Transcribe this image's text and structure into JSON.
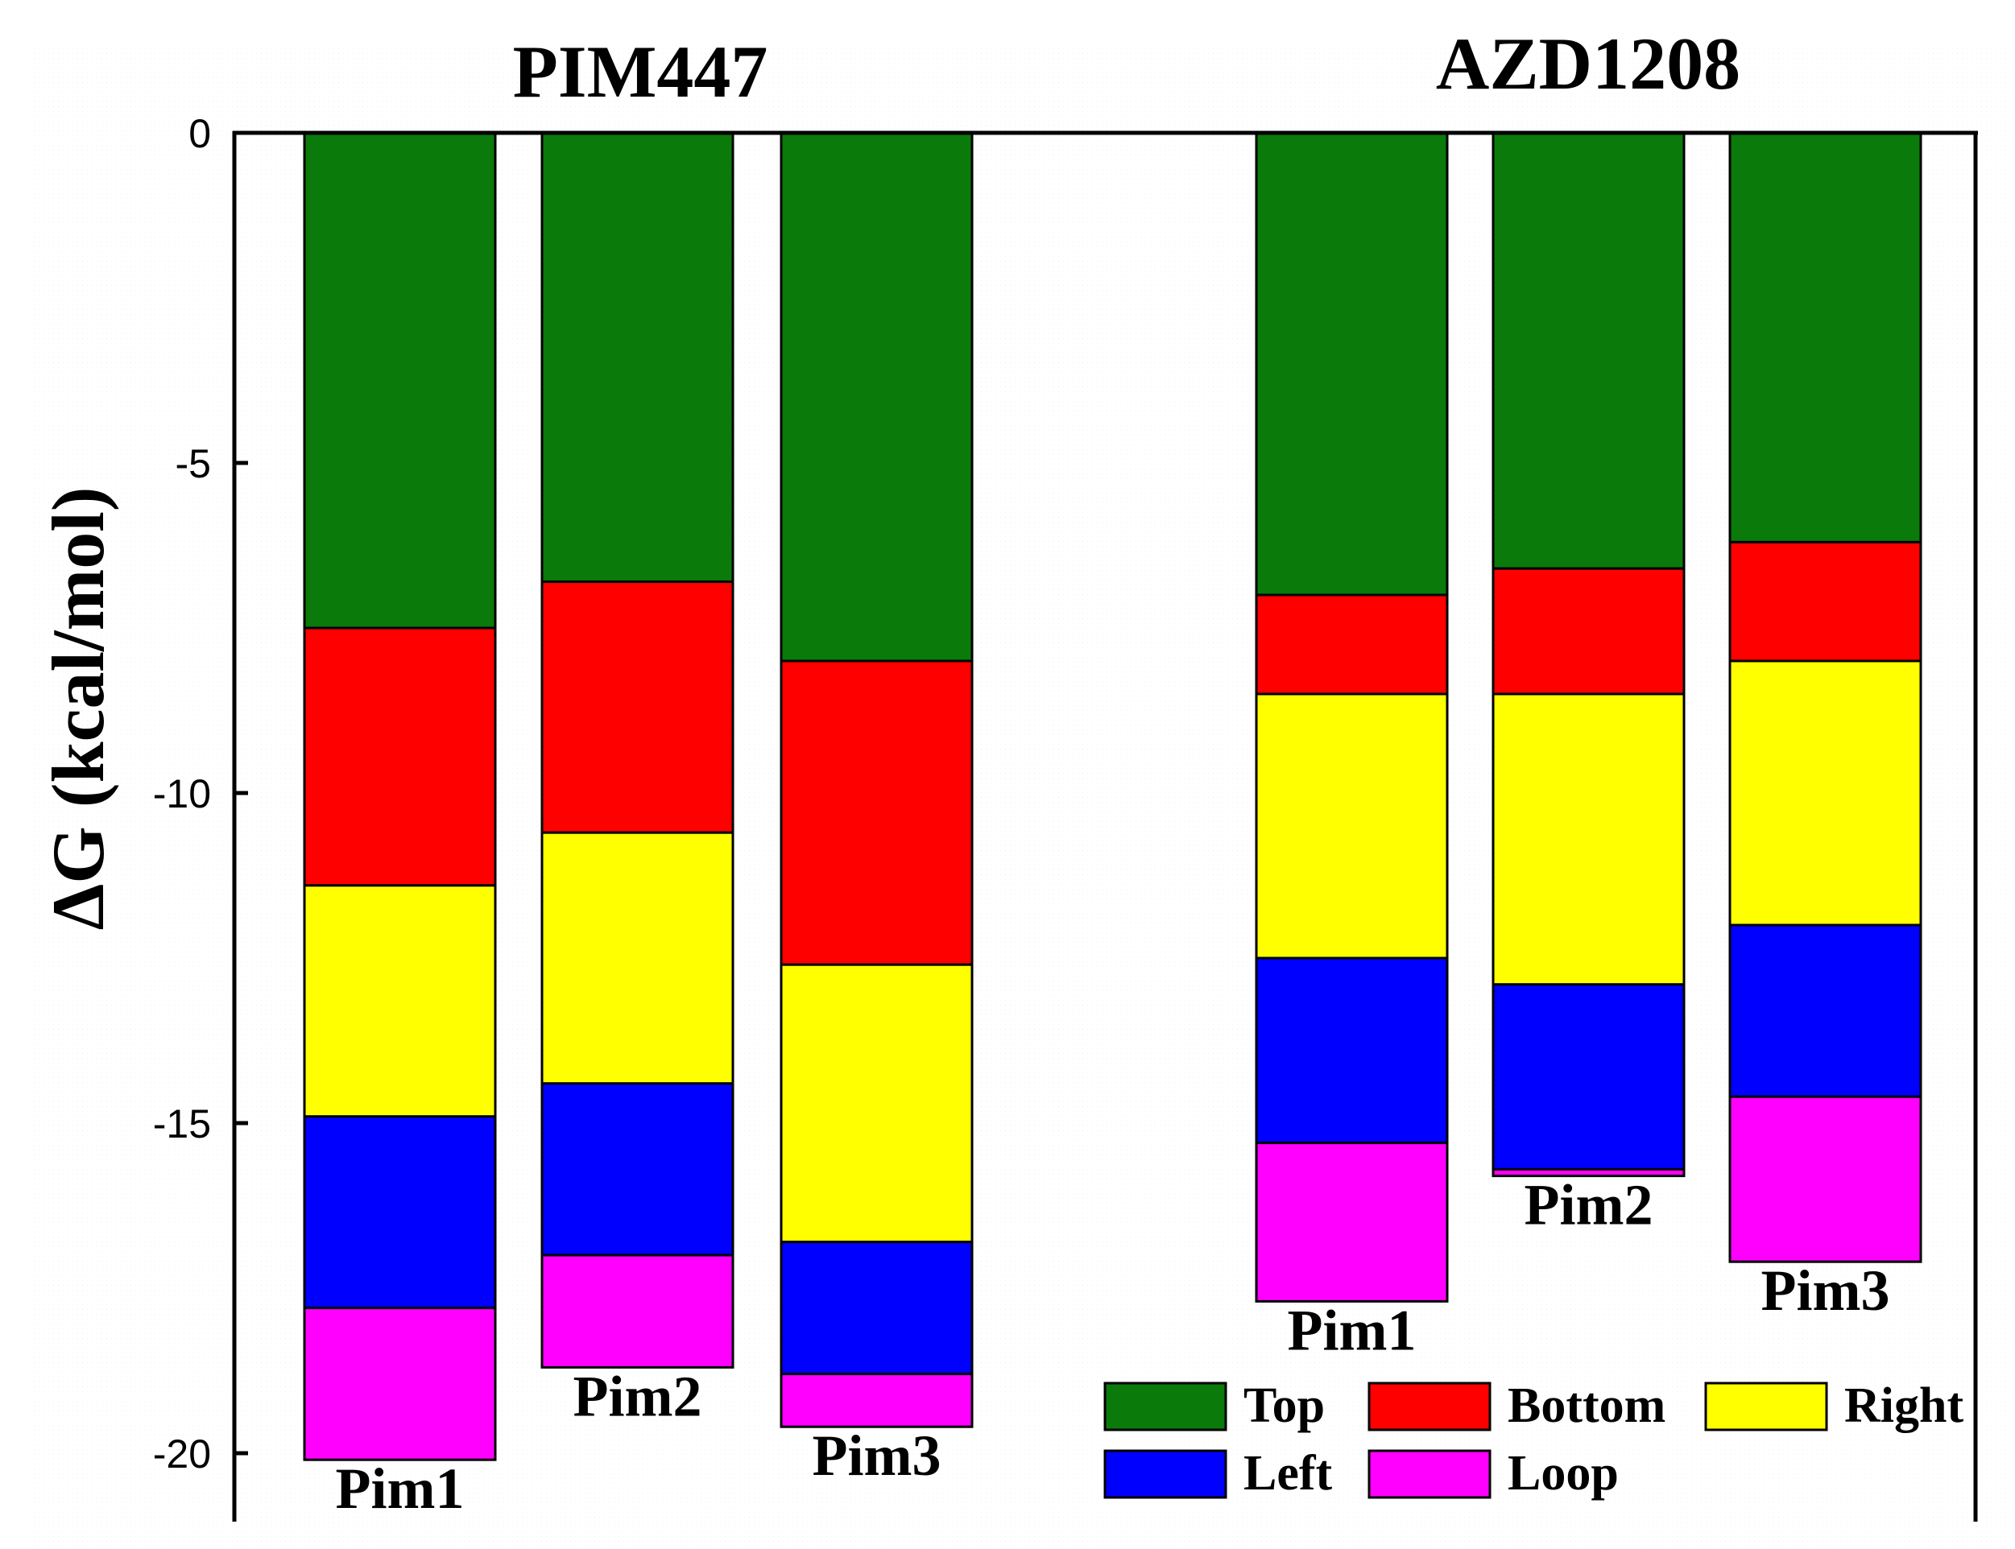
{
  "chart_data": {
    "type": "bar",
    "stacked": true,
    "orientation": "vertical-negative",
    "ylabel": "ΔG (kcal/mol)",
    "ylim": [
      -21,
      0
    ],
    "yticks": [
      0,
      -5,
      -10,
      -15,
      -20
    ],
    "ytick_labels": [
      "0",
      "-5",
      "-10",
      "-15",
      "-20"
    ],
    "groups": [
      {
        "name": "PIM447",
        "categories": [
          "Pim1",
          "Pim2",
          "Pim3"
        ]
      },
      {
        "name": "AZD1208",
        "categories": [
          "Pim1",
          "Pim2",
          "Pim3"
        ]
      }
    ],
    "series": [
      {
        "name": "Top",
        "color": "#0a7a0a",
        "values": [
          [
            -7.5,
            -6.8,
            -8.0
          ],
          [
            -7.0,
            -6.6,
            -6.2
          ]
        ]
      },
      {
        "name": "Bottom",
        "color": "#ff0000",
        "values": [
          [
            -3.9,
            -3.8,
            -4.6
          ],
          [
            -1.5,
            -1.9,
            -1.8
          ]
        ]
      },
      {
        "name": "Right",
        "color": "#ffff00",
        "values": [
          [
            -3.5,
            -3.8,
            -4.2
          ],
          [
            -4.0,
            -4.4,
            -4.0
          ]
        ]
      },
      {
        "name": "Left",
        "color": "#0000ff",
        "values": [
          [
            -2.9,
            -2.6,
            -2.0
          ],
          [
            -2.8,
            -2.8,
            -2.6
          ]
        ]
      },
      {
        "name": "Loop",
        "color": "#ff00ff",
        "values": [
          [
            -2.3,
            -1.7,
            -0.8
          ],
          [
            -2.4,
            -0.1,
            -2.5
          ]
        ]
      }
    ],
    "legend_position": "bottom-right"
  }
}
